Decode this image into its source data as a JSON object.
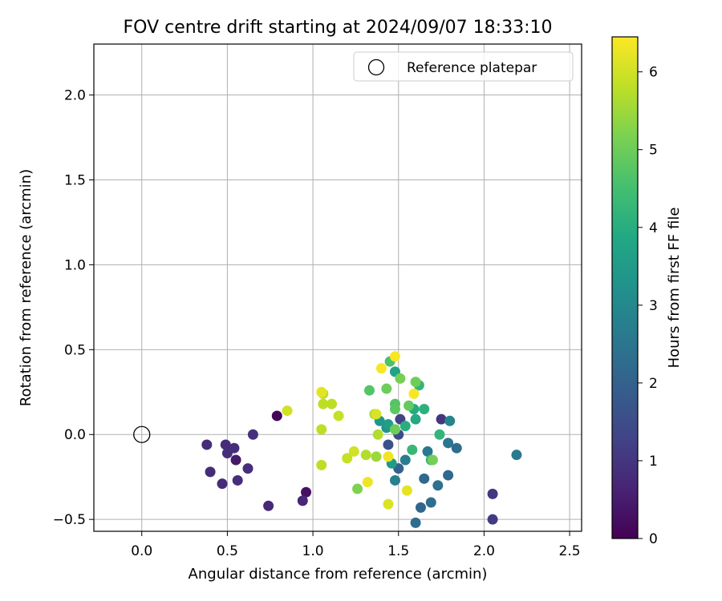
{
  "chart_data": {
    "type": "scatter",
    "title": "FOV centre drift starting at 2024/09/07 18:33:10",
    "xlabel": "Angular distance from reference (arcmin)",
    "ylabel": "Rotation from reference (arcmin)",
    "xlim": [
      -0.28,
      2.57
    ],
    "ylim": [
      -0.57,
      2.3
    ],
    "x_ticks": [
      0.0,
      0.5,
      1.0,
      1.5,
      2.0,
      2.5
    ],
    "x_tick_labels": [
      "0.0",
      "0.5",
      "1.0",
      "1.5",
      "2.0",
      "2.5"
    ],
    "y_ticks": [
      -0.5,
      0.0,
      0.5,
      1.0,
      1.5,
      2.0
    ],
    "y_tick_labels": [
      "−0.5",
      "0.0",
      "0.5",
      "1.0",
      "1.5",
      "2.0"
    ],
    "grid": true,
    "legend": {
      "position": "top-right",
      "entries": [
        "Reference platepar"
      ]
    },
    "reference": {
      "x": 0.0,
      "y": 0.0,
      "label": "Reference platepar"
    },
    "colorbar": {
      "label": "Hours from first FF file",
      "colormap": "viridis",
      "range": [
        0,
        6.45
      ],
      "ticks": [
        0,
        1,
        2,
        3,
        4,
        5,
        6
      ],
      "tick_labels": [
        "0",
        "1",
        "2",
        "3",
        "4",
        "5",
        "6"
      ]
    },
    "points": [
      {
        "x": 0.79,
        "y": 0.11,
        "h": 0.05
      },
      {
        "x": 0.96,
        "y": -0.34,
        "h": 0.3
      },
      {
        "x": 0.55,
        "y": -0.15,
        "h": 0.45
      },
      {
        "x": 0.94,
        "y": -0.39,
        "h": 0.7
      },
      {
        "x": 0.74,
        "y": -0.42,
        "h": 0.75
      },
      {
        "x": 0.38,
        "y": -0.06,
        "h": 0.8
      },
      {
        "x": 0.49,
        "y": -0.06,
        "h": 0.8
      },
      {
        "x": 0.5,
        "y": -0.11,
        "h": 0.85
      },
      {
        "x": 0.54,
        "y": -0.08,
        "h": 0.85
      },
      {
        "x": 0.4,
        "y": -0.22,
        "h": 0.8
      },
      {
        "x": 0.47,
        "y": -0.29,
        "h": 0.8
      },
      {
        "x": 0.56,
        "y": -0.27,
        "h": 0.85
      },
      {
        "x": 0.62,
        "y": -0.2,
        "h": 0.85
      },
      {
        "x": 0.65,
        "y": 0.0,
        "h": 0.9
      },
      {
        "x": 2.05,
        "y": -0.35,
        "h": 1.0
      },
      {
        "x": 2.05,
        "y": -0.5,
        "h": 1.1
      },
      {
        "x": 1.75,
        "y": 0.09,
        "h": 1.0
      },
      {
        "x": 1.51,
        "y": 0.09,
        "h": 1.3
      },
      {
        "x": 1.5,
        "y": 0.0,
        "h": 1.5
      },
      {
        "x": 1.44,
        "y": -0.06,
        "h": 1.6
      },
      {
        "x": 1.5,
        "y": -0.2,
        "h": 2.0
      },
      {
        "x": 1.63,
        "y": -0.43,
        "h": 2.1
      },
      {
        "x": 1.65,
        "y": -0.26,
        "h": 2.2
      },
      {
        "x": 1.6,
        "y": -0.52,
        "h": 2.3
      },
      {
        "x": 1.69,
        "y": -0.4,
        "h": 2.3
      },
      {
        "x": 1.73,
        "y": -0.3,
        "h": 2.4
      },
      {
        "x": 1.79,
        "y": -0.24,
        "h": 2.2
      },
      {
        "x": 1.84,
        "y": -0.08,
        "h": 2.3
      },
      {
        "x": 1.79,
        "y": -0.05,
        "h": 2.5
      },
      {
        "x": 1.67,
        "y": -0.1,
        "h": 2.6
      },
      {
        "x": 1.54,
        "y": -0.15,
        "h": 2.7
      },
      {
        "x": 1.48,
        "y": -0.27,
        "h": 2.8
      },
      {
        "x": 2.19,
        "y": -0.12,
        "h": 2.6
      },
      {
        "x": 1.8,
        "y": 0.08,
        "h": 2.9
      },
      {
        "x": 1.43,
        "y": 0.04,
        "h": 3.3
      },
      {
        "x": 1.39,
        "y": 0.08,
        "h": 3.4
      },
      {
        "x": 1.46,
        "y": -0.17,
        "h": 3.5
      },
      {
        "x": 1.44,
        "y": 0.06,
        "h": 3.6
      },
      {
        "x": 1.48,
        "y": 0.37,
        "h": 3.7
      },
      {
        "x": 1.59,
        "y": 0.15,
        "h": 3.9
      },
      {
        "x": 1.6,
        "y": 0.09,
        "h": 3.9
      },
      {
        "x": 1.54,
        "y": 0.05,
        "h": 4.0
      },
      {
        "x": 1.65,
        "y": 0.15,
        "h": 4.1
      },
      {
        "x": 1.62,
        "y": 0.29,
        "h": 4.2
      },
      {
        "x": 1.69,
        "y": -0.15,
        "h": 4.2
      },
      {
        "x": 1.74,
        "y": 0.0,
        "h": 4.2
      },
      {
        "x": 1.58,
        "y": -0.09,
        "h": 4.3
      },
      {
        "x": 1.45,
        "y": 0.43,
        "h": 4.6
      },
      {
        "x": 1.33,
        "y": 0.26,
        "h": 4.7
      },
      {
        "x": 1.48,
        "y": 0.18,
        "h": 4.7
      },
      {
        "x": 1.48,
        "y": 0.15,
        "h": 4.8
      },
      {
        "x": 1.56,
        "y": 0.17,
        "h": 4.9
      },
      {
        "x": 1.6,
        "y": 0.31,
        "h": 5.0
      },
      {
        "x": 1.43,
        "y": 0.27,
        "h": 5.0
      },
      {
        "x": 1.48,
        "y": 0.03,
        "h": 5.0
      },
      {
        "x": 1.7,
        "y": -0.15,
        "h": 5.1
      },
      {
        "x": 1.51,
        "y": 0.33,
        "h": 5.1
      },
      {
        "x": 1.26,
        "y": -0.32,
        "h": 5.2
      },
      {
        "x": 1.37,
        "y": -0.13,
        "h": 5.5
      },
      {
        "x": 1.36,
        "y": 0.12,
        "h": 5.6
      },
      {
        "x": 1.38,
        "y": 0.0,
        "h": 5.7
      },
      {
        "x": 1.31,
        "y": -0.12,
        "h": 5.7
      },
      {
        "x": 1.05,
        "y": -0.18,
        "h": 5.8
      },
      {
        "x": 1.05,
        "y": 0.03,
        "h": 5.8
      },
      {
        "x": 1.06,
        "y": 0.18,
        "h": 5.8
      },
      {
        "x": 1.06,
        "y": 0.24,
        "h": 5.8
      },
      {
        "x": 1.11,
        "y": 0.18,
        "h": 5.8
      },
      {
        "x": 1.15,
        "y": 0.11,
        "h": 5.9
      },
      {
        "x": 1.2,
        "y": -0.14,
        "h": 5.9
      },
      {
        "x": 1.24,
        "y": -0.1,
        "h": 6.0
      },
      {
        "x": 0.85,
        "y": 0.14,
        "h": 6.0
      },
      {
        "x": 1.37,
        "y": 0.12,
        "h": 6.1
      },
      {
        "x": 1.44,
        "y": -0.41,
        "h": 6.1
      },
      {
        "x": 1.55,
        "y": -0.33,
        "h": 6.2
      },
      {
        "x": 1.05,
        "y": 0.25,
        "h": 6.2
      },
      {
        "x": 1.32,
        "y": -0.28,
        "h": 6.3
      },
      {
        "x": 1.44,
        "y": -0.13,
        "h": 6.3
      },
      {
        "x": 1.4,
        "y": 0.39,
        "h": 6.4
      },
      {
        "x": 1.48,
        "y": 0.46,
        "h": 6.4
      },
      {
        "x": 1.59,
        "y": 0.24,
        "h": 6.4
      }
    ]
  }
}
